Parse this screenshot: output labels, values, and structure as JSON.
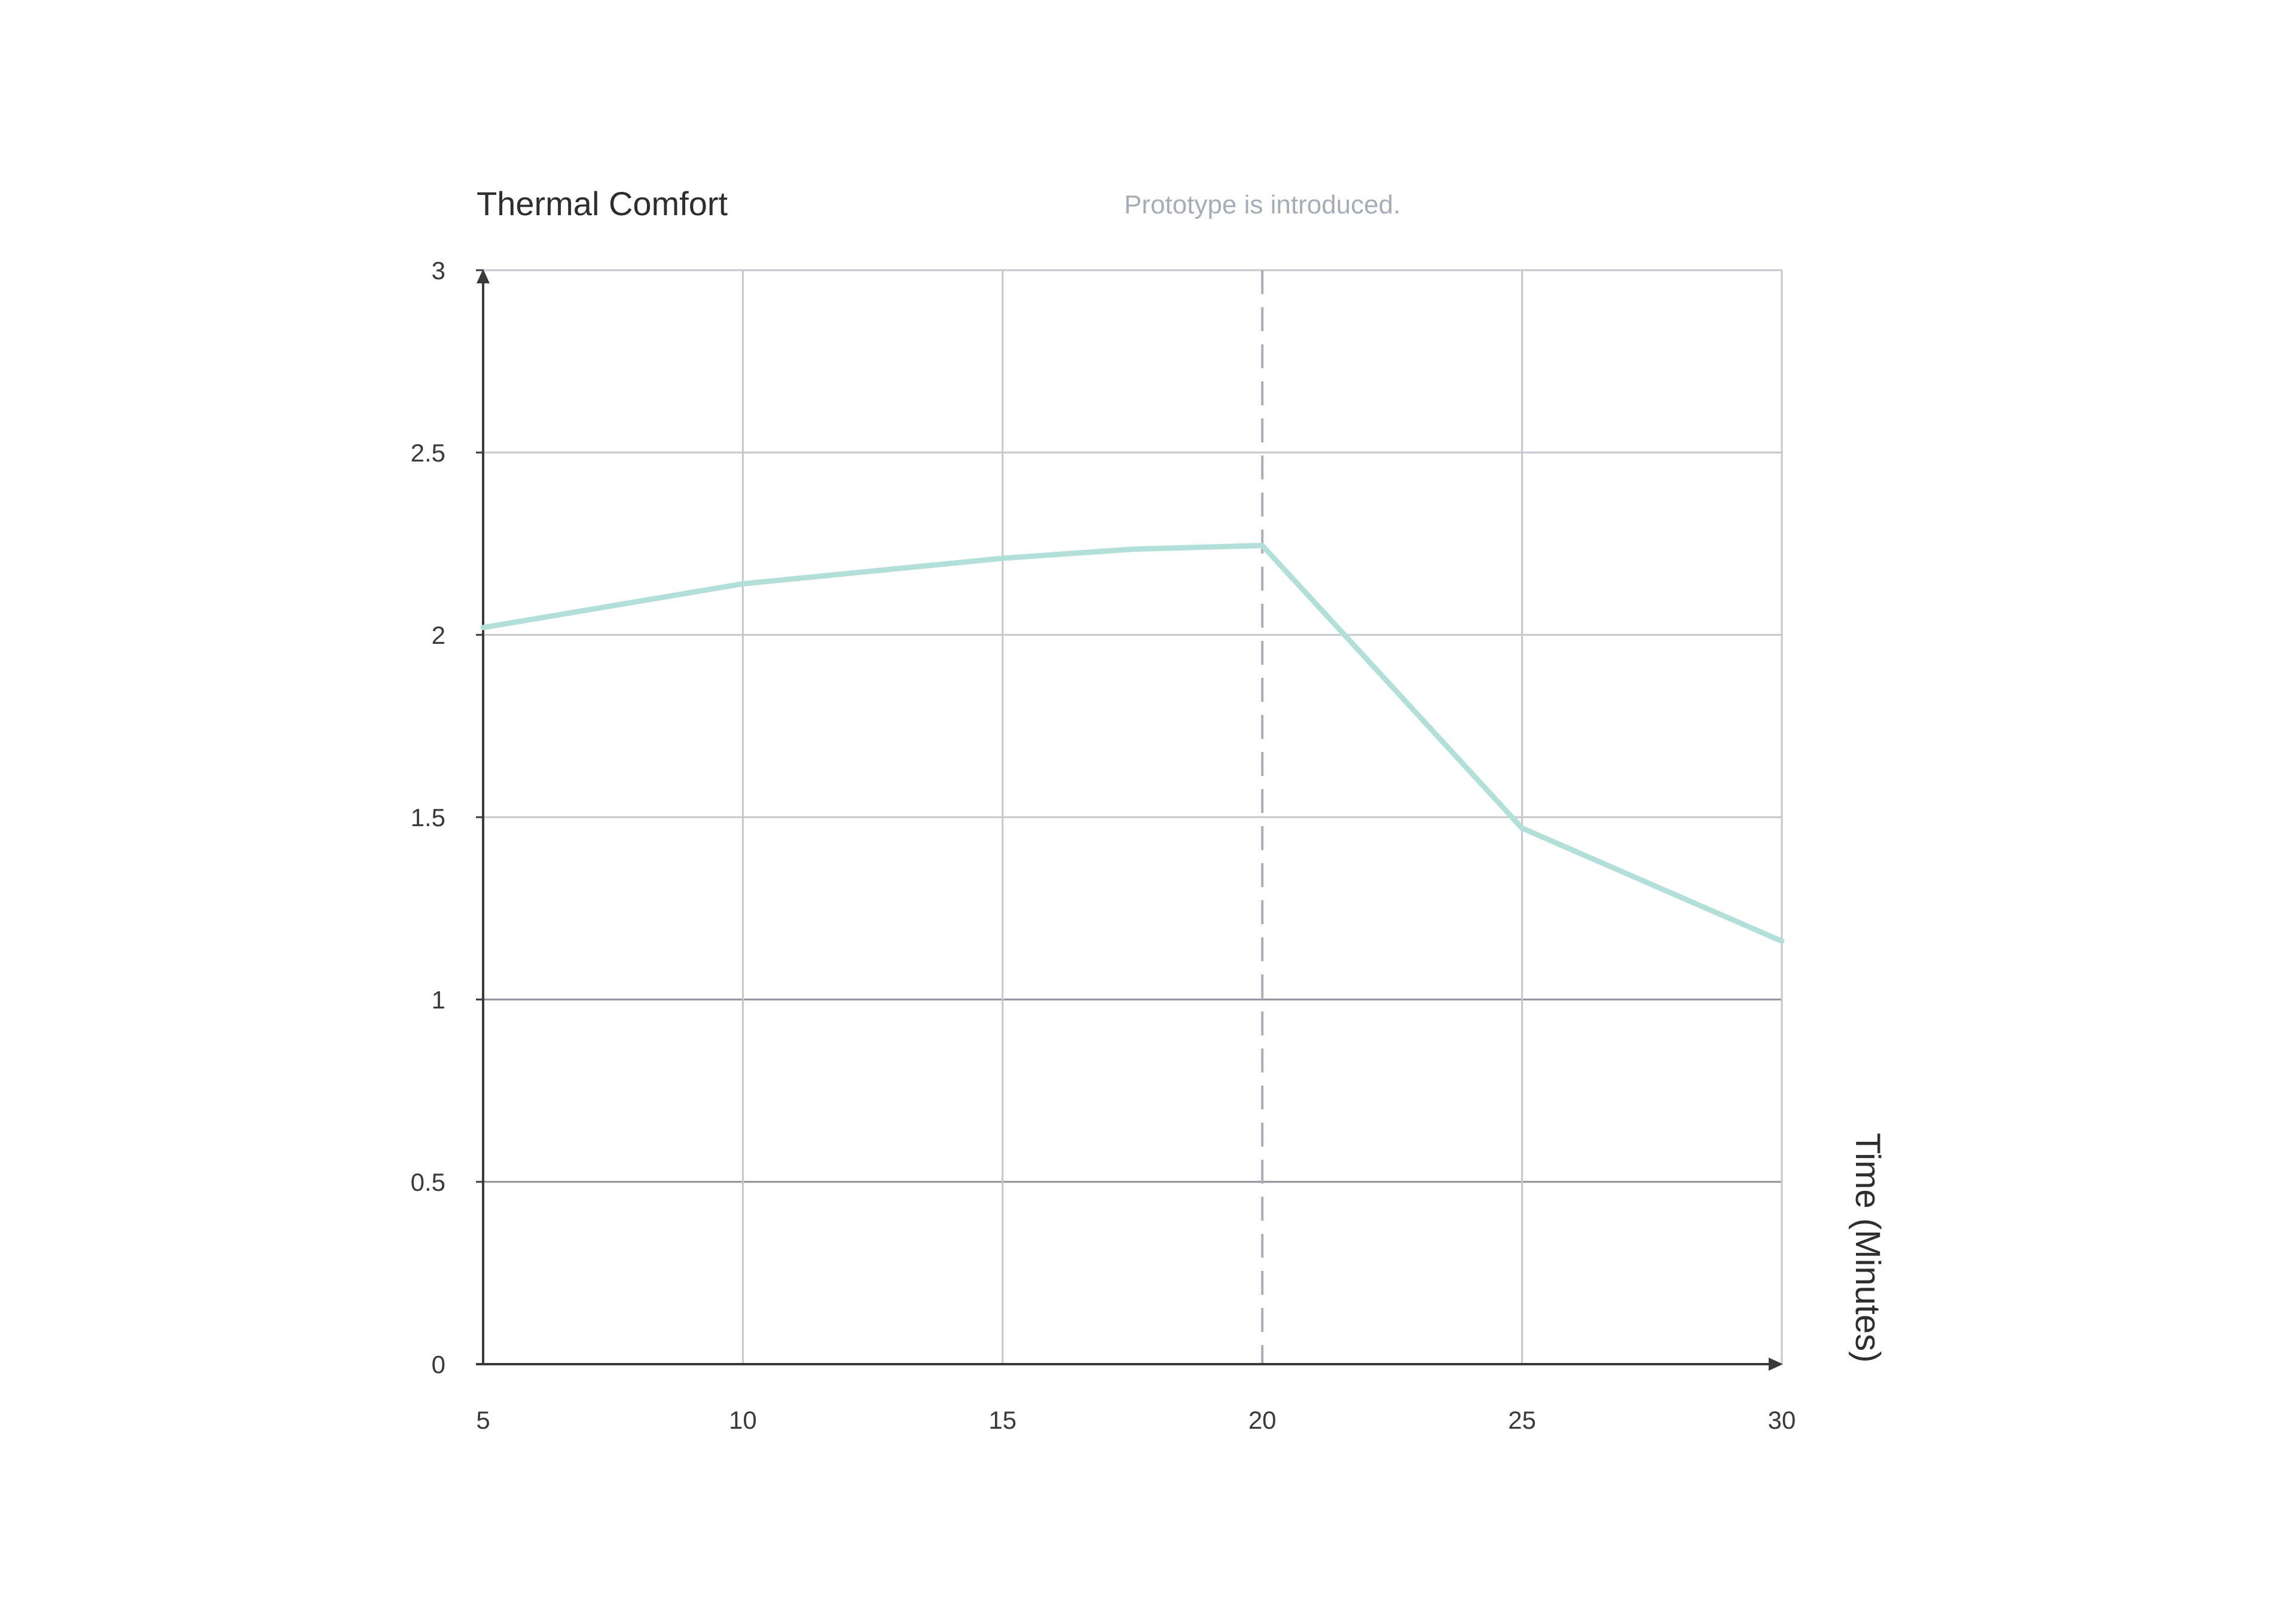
{
  "chart_data": {
    "type": "line",
    "title": "",
    "ylabel": "Thermal Comfort",
    "xlabel": "Time (Minutes)",
    "x": [
      5,
      10,
      15,
      17.5,
      20,
      25,
      30
    ],
    "series": [
      {
        "name": "",
        "values": [
          2.02,
          2.14,
          2.21,
          2.235,
          2.245,
          1.47,
          1.16
        ],
        "color": "#b2e0d9"
      }
    ],
    "xlim": [
      5,
      30
    ],
    "ylim": [
      0,
      3
    ],
    "xticks": [
      5,
      10,
      15,
      20,
      25,
      30
    ],
    "xtick_labels": [
      "5",
      "10",
      "15",
      "20",
      "25",
      "30"
    ],
    "yticks": [
      0,
      0.5,
      1,
      1.5,
      2,
      2.5,
      3
    ],
    "ytick_labels": [
      "0",
      "0.5",
      "1",
      "1.5",
      "2",
      "2.5",
      "3"
    ],
    "grid": true,
    "legend": "none",
    "annotations": [
      {
        "x": 20,
        "text": "Prototype is introduced.",
        "style": "dashed-vertical-line"
      }
    ],
    "colors": {
      "line": "#b2e0d9",
      "grid": "#c4c7cc",
      "axis": "#3a3a3a",
      "marker_line": "#a9adb8",
      "annotation_text": "#a7adb6"
    }
  }
}
